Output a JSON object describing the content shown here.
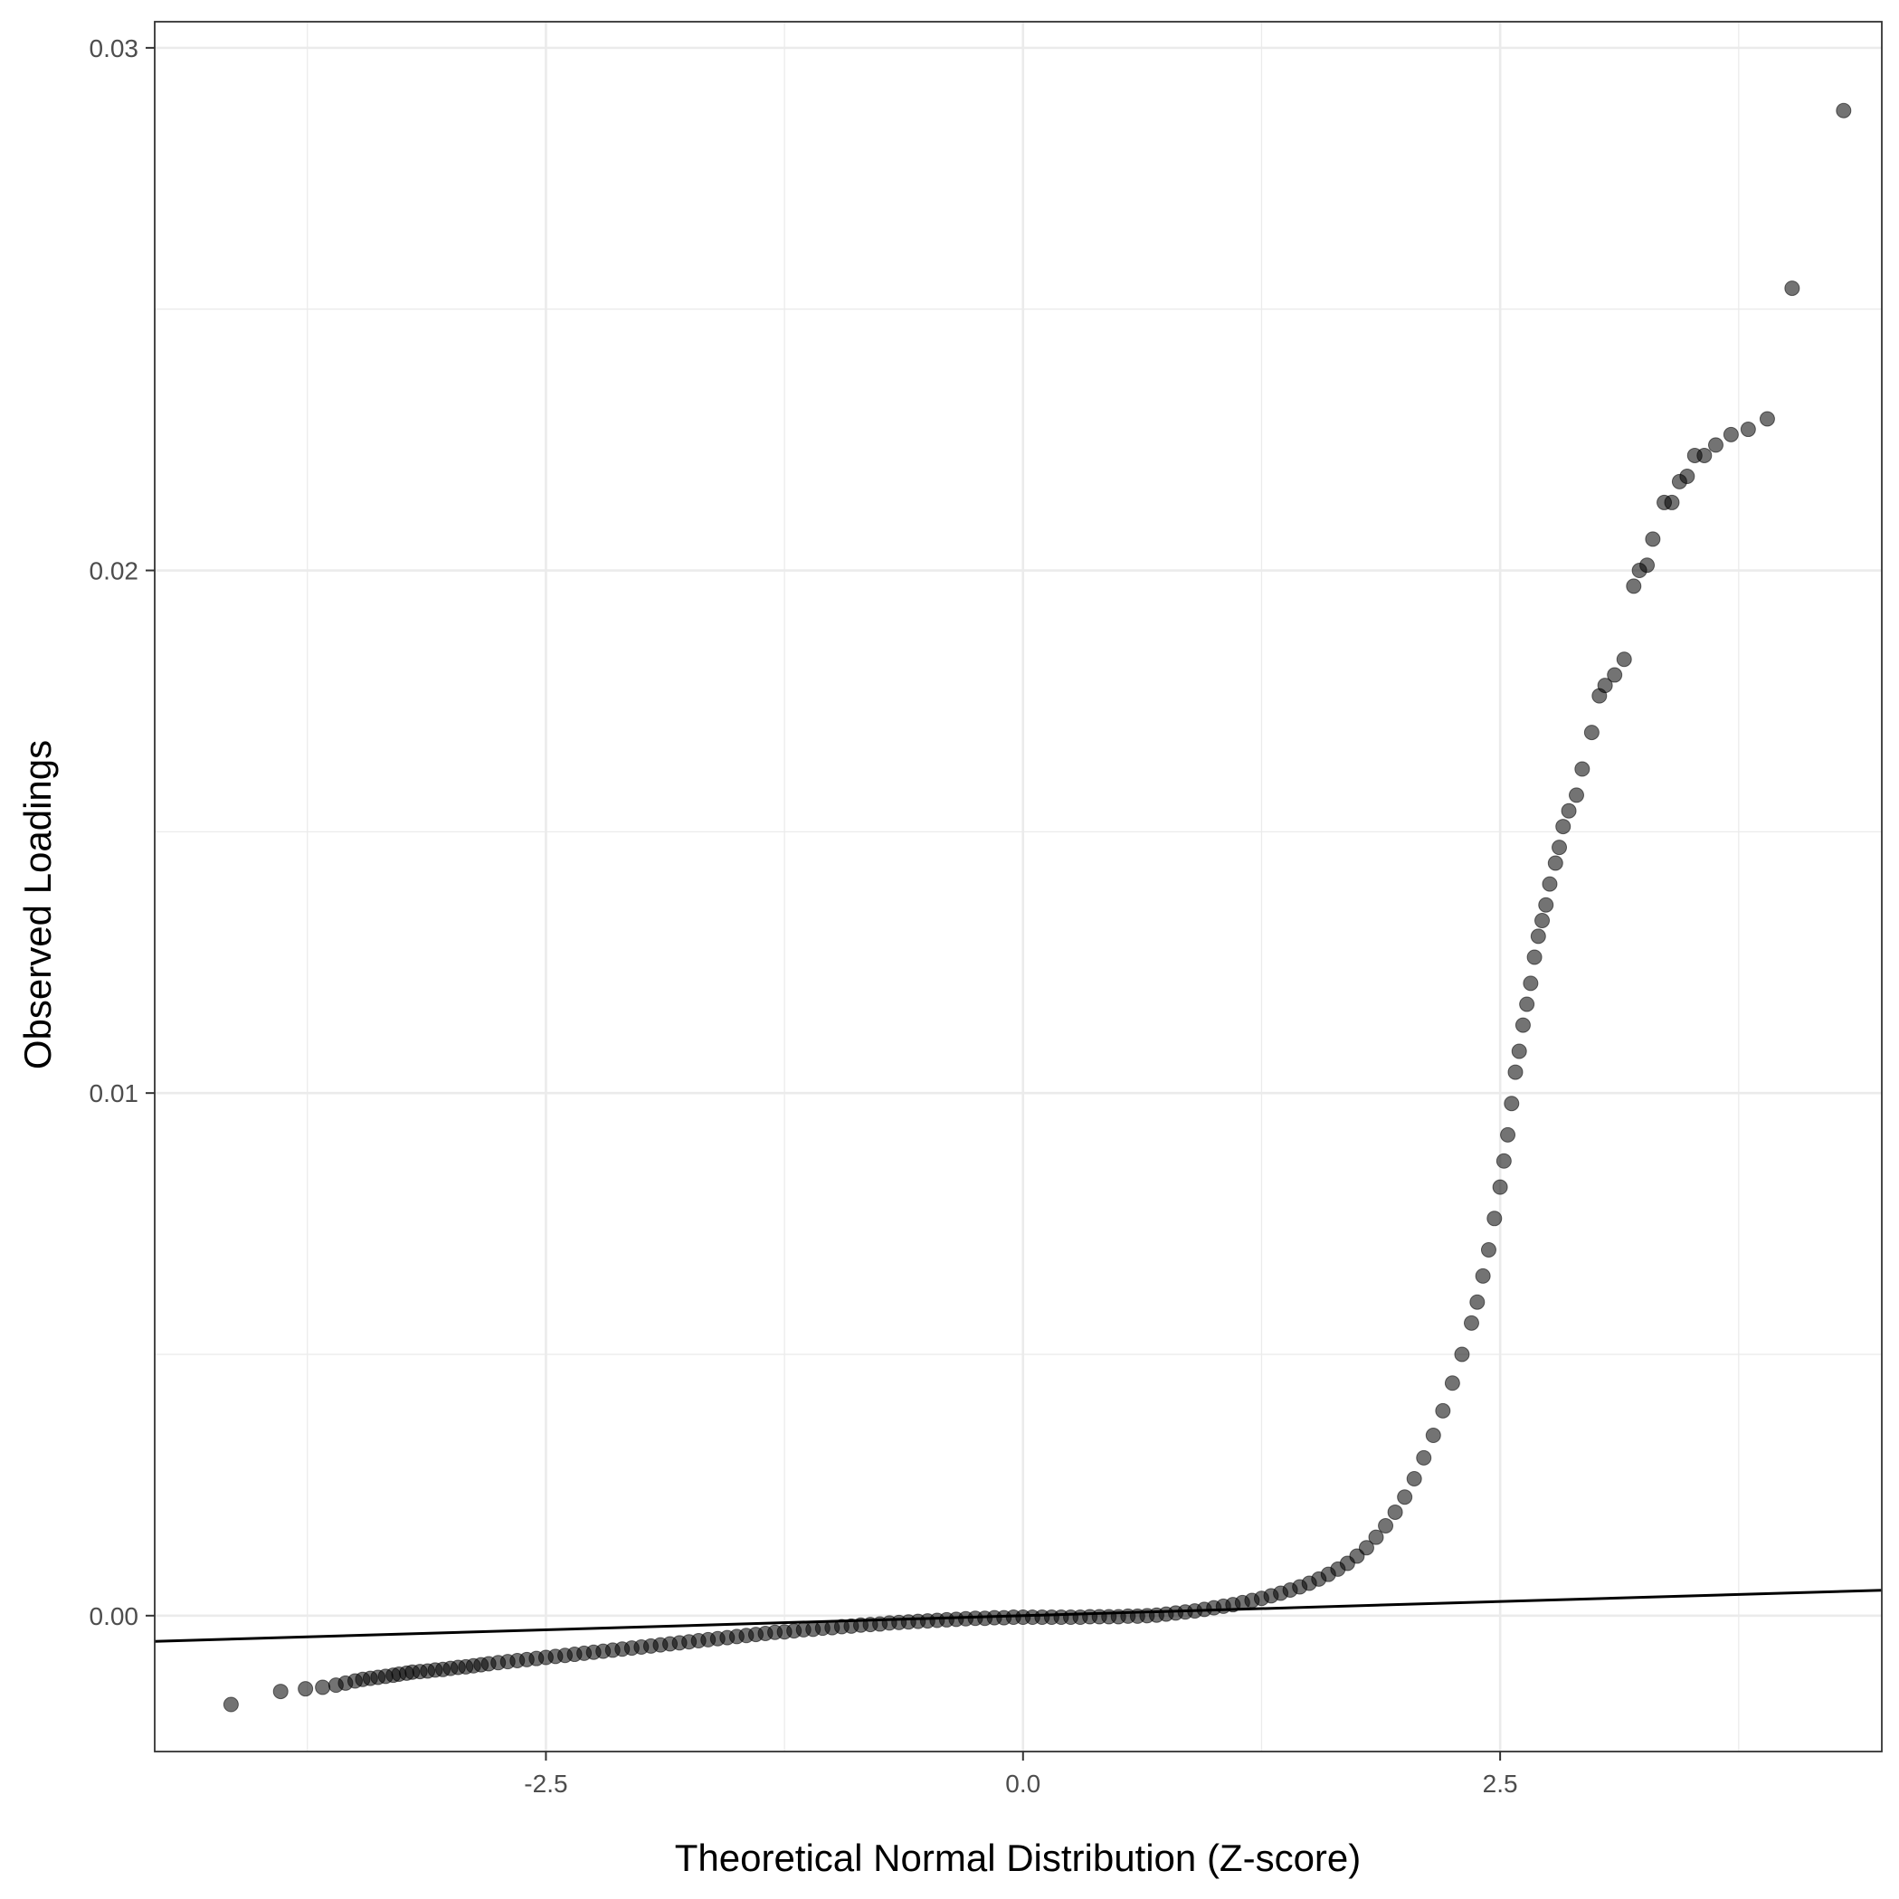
{
  "chart_data": {
    "type": "scatter",
    "title": "",
    "xlabel": "Theoretical Normal Distribution (Z-score)",
    "ylabel": "Observed Loadings",
    "xlim": [
      -4.55,
      4.5
    ],
    "ylim": [
      -0.0026,
      0.0305
    ],
    "x_ticks": [
      -2.5,
      0.0,
      2.5
    ],
    "x_tick_labels": [
      "-2.5",
      "0.0",
      "2.5"
    ],
    "y_ticks": [
      0.0,
      0.01,
      0.02,
      0.03
    ],
    "y_tick_labels": [
      "0.00",
      "0.01",
      "0.02",
      "0.03"
    ],
    "x_minor_ticks": [
      -3.75,
      -1.25,
      1.25,
      3.75
    ],
    "y_minor_ticks": [
      0.005,
      0.015,
      0.025
    ],
    "grid": true,
    "reference_line": {
      "intercept": 0.0,
      "slope": 0.000108
    },
    "series": [
      {
        "color": "#000000",
        "opacity": 0.55,
        "points": [
          [
            -4.15,
            -0.0017
          ],
          [
            -3.89,
            -0.00145
          ],
          [
            -3.76,
            -0.0014
          ],
          [
            -3.67,
            -0.00137
          ],
          [
            -3.6,
            -0.00133
          ],
          [
            -3.55,
            -0.00129
          ],
          [
            -3.5,
            -0.00125
          ],
          [
            -3.46,
            -0.00122
          ],
          [
            -3.42,
            -0.0012
          ],
          [
            -3.38,
            -0.00118
          ],
          [
            -3.34,
            -0.00116
          ],
          [
            -3.3,
            -0.00114
          ],
          [
            -3.27,
            -0.00112
          ],
          [
            -3.23,
            -0.0011
          ],
          [
            -3.2,
            -0.00108
          ],
          [
            -3.16,
            -0.00107
          ],
          [
            -3.12,
            -0.00106
          ],
          [
            -3.08,
            -0.00104
          ],
          [
            -3.04,
            -0.00103
          ],
          [
            -3.0,
            -0.00101
          ],
          [
            -2.96,
            -0.00099
          ],
          [
            -2.92,
            -0.00098
          ],
          [
            -2.88,
            -0.00096
          ],
          [
            -2.84,
            -0.00094
          ],
          [
            -2.8,
            -0.00092
          ],
          [
            -2.75,
            -0.0009
          ],
          [
            -2.7,
            -0.00088
          ],
          [
            -2.65,
            -0.00086
          ],
          [
            -2.6,
            -0.00084
          ],
          [
            -2.55,
            -0.00082
          ],
          [
            -2.5,
            -0.0008
          ],
          [
            -2.45,
            -0.00078
          ],
          [
            -2.4,
            -0.00076
          ],
          [
            -2.35,
            -0.00074
          ],
          [
            -2.3,
            -0.00072
          ],
          [
            -2.25,
            -0.0007
          ],
          [
            -2.2,
            -0.00068
          ],
          [
            -2.15,
            -0.00066
          ],
          [
            -2.1,
            -0.00064
          ],
          [
            -2.05,
            -0.00062
          ],
          [
            -2.0,
            -0.0006
          ],
          [
            -1.95,
            -0.00058
          ],
          [
            -1.9,
            -0.00056
          ],
          [
            -1.85,
            -0.00054
          ],
          [
            -1.8,
            -0.00052
          ],
          [
            -1.75,
            -0.0005
          ],
          [
            -1.7,
            -0.00048
          ],
          [
            -1.65,
            -0.00046
          ],
          [
            -1.6,
            -0.00044
          ],
          [
            -1.55,
            -0.00042
          ],
          [
            -1.5,
            -0.0004
          ],
          [
            -1.45,
            -0.00038
          ],
          [
            -1.4,
            -0.00036
          ],
          [
            -1.35,
            -0.00034
          ],
          [
            -1.3,
            -0.00032
          ],
          [
            -1.25,
            -0.00031
          ],
          [
            -1.2,
            -0.00029
          ],
          [
            -1.15,
            -0.00027
          ],
          [
            -1.1,
            -0.00026
          ],
          [
            -1.05,
            -0.00024
          ],
          [
            -1.0,
            -0.00023
          ],
          [
            -0.95,
            -0.00021
          ],
          [
            -0.9,
            -0.0002
          ],
          [
            -0.85,
            -0.00018
          ],
          [
            -0.8,
            -0.00017
          ],
          [
            -0.75,
            -0.00016
          ],
          [
            -0.7,
            -0.00014
          ],
          [
            -0.65,
            -0.00013
          ],
          [
            -0.6,
            -0.00012
          ],
          [
            -0.55,
            -0.00011
          ],
          [
            -0.5,
            -0.0001
          ],
          [
            -0.45,
            -9e-05
          ],
          [
            -0.4,
            -8e-05
          ],
          [
            -0.35,
            -7e-05
          ],
          [
            -0.3,
            -6e-05
          ],
          [
            -0.25,
            -5e-05
          ],
          [
            -0.2,
            -5e-05
          ],
          [
            -0.15,
            -4e-05
          ],
          [
            -0.1,
            -4e-05
          ],
          [
            -0.05,
            -3e-05
          ],
          [
            0.0,
            -3e-05
          ],
          [
            0.05,
            -3e-05
          ],
          [
            0.1,
            -3e-05
          ],
          [
            0.15,
            -3e-05
          ],
          [
            0.2,
            -3e-05
          ],
          [
            0.25,
            -3e-05
          ],
          [
            0.3,
            -3e-05
          ],
          [
            0.35,
            -2e-05
          ],
          [
            0.4,
            -2e-05
          ],
          [
            0.45,
            -2e-05
          ],
          [
            0.5,
            -2e-05
          ],
          [
            0.55,
            -1e-05
          ],
          [
            0.6,
            -1e-05
          ],
          [
            0.65,
            0.0
          ],
          [
            0.7,
            1e-05
          ],
          [
            0.75,
            3e-05
          ],
          [
            0.8,
            5e-05
          ],
          [
            0.85,
            7e-05
          ],
          [
            0.9,
            9e-05
          ],
          [
            0.95,
            0.00012
          ],
          [
            1.0,
            0.00015
          ],
          [
            1.05,
            0.00018
          ],
          [
            1.1,
            0.00021
          ],
          [
            1.15,
            0.00025
          ],
          [
            1.2,
            0.00029
          ],
          [
            1.25,
            0.00033
          ],
          [
            1.3,
            0.00038
          ],
          [
            1.35,
            0.00043
          ],
          [
            1.4,
            0.00049
          ],
          [
            1.45,
            0.00055
          ],
          [
            1.5,
            0.00062
          ],
          [
            1.55,
            0.0007
          ],
          [
            1.6,
            0.00079
          ],
          [
            1.65,
            0.00089
          ],
          [
            1.7,
            0.001
          ],
          [
            1.75,
            0.00114
          ],
          [
            1.8,
            0.0013
          ],
          [
            1.85,
            0.0015
          ],
          [
            1.9,
            0.00172
          ],
          [
            1.95,
            0.00198
          ],
          [
            2.0,
            0.00227
          ],
          [
            2.05,
            0.00262
          ],
          [
            2.1,
            0.00302
          ],
          [
            2.15,
            0.00345
          ],
          [
            2.2,
            0.00392
          ],
          [
            2.25,
            0.00445
          ],
          [
            2.3,
            0.005
          ],
          [
            2.35,
            0.0056
          ],
          [
            2.38,
            0.006
          ],
          [
            2.41,
            0.0065
          ],
          [
            2.44,
            0.007
          ],
          [
            2.47,
            0.0076
          ],
          [
            2.5,
            0.0082
          ],
          [
            2.52,
            0.0087
          ],
          [
            2.54,
            0.0092
          ],
          [
            2.56,
            0.0098
          ],
          [
            2.58,
            0.0104
          ],
          [
            2.6,
            0.0108
          ],
          [
            2.62,
            0.0113
          ],
          [
            2.64,
            0.0117
          ],
          [
            2.66,
            0.0121
          ],
          [
            2.68,
            0.0126
          ],
          [
            2.7,
            0.013
          ],
          [
            2.72,
            0.0133
          ],
          [
            2.74,
            0.0136
          ],
          [
            2.76,
            0.014
          ],
          [
            2.79,
            0.0144
          ],
          [
            2.81,
            0.0147
          ],
          [
            2.83,
            0.0151
          ],
          [
            2.86,
            0.0154
          ],
          [
            2.9,
            0.0157
          ],
          [
            2.93,
            0.0162
          ],
          [
            2.98,
            0.0169
          ],
          [
            3.02,
            0.0176
          ],
          [
            3.05,
            0.0178
          ],
          [
            3.1,
            0.018
          ],
          [
            3.15,
            0.0183
          ],
          [
            3.2,
            0.0197
          ],
          [
            3.23,
            0.02
          ],
          [
            3.27,
            0.0201
          ],
          [
            3.3,
            0.0206
          ],
          [
            3.36,
            0.0213
          ],
          [
            3.4,
            0.0213
          ],
          [
            3.44,
            0.0217
          ],
          [
            3.48,
            0.0218
          ],
          [
            3.52,
            0.0222
          ],
          [
            3.57,
            0.0222
          ],
          [
            3.63,
            0.0224
          ],
          [
            3.71,
            0.0226
          ],
          [
            3.8,
            0.0227
          ],
          [
            3.9,
            0.0229
          ],
          [
            4.03,
            0.0254
          ],
          [
            4.3,
            0.0288
          ]
        ]
      }
    ]
  }
}
